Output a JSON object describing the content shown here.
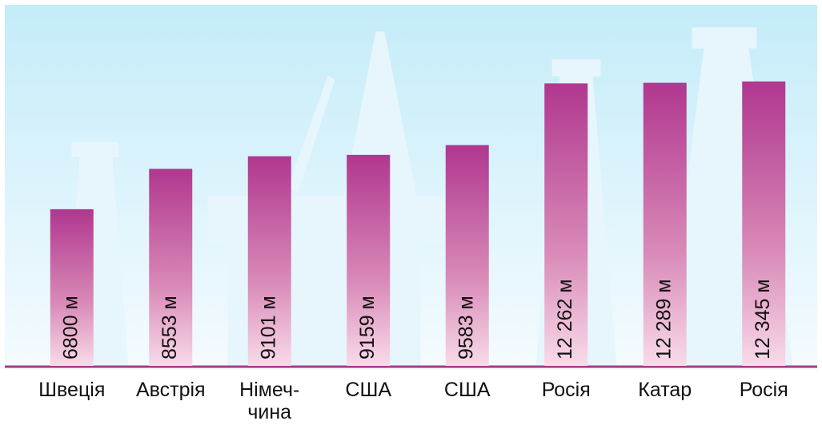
{
  "chart_data": {
    "type": "bar",
    "categories": [
      "Швеція",
      "Австрія",
      "Німеч-\nчина",
      "США",
      "США",
      "Росія",
      "Катар",
      "Росія"
    ],
    "values": [
      6800,
      8553,
      9101,
      9159,
      9583,
      12262,
      12289,
      12345
    ],
    "value_labels": [
      "6800 м",
      "8553 м",
      "9101 м",
      "9159 м",
      "9583 м",
      "12 262 м",
      "12 289 м",
      "12 345 м"
    ],
    "color": "#b0378f"
  }
}
